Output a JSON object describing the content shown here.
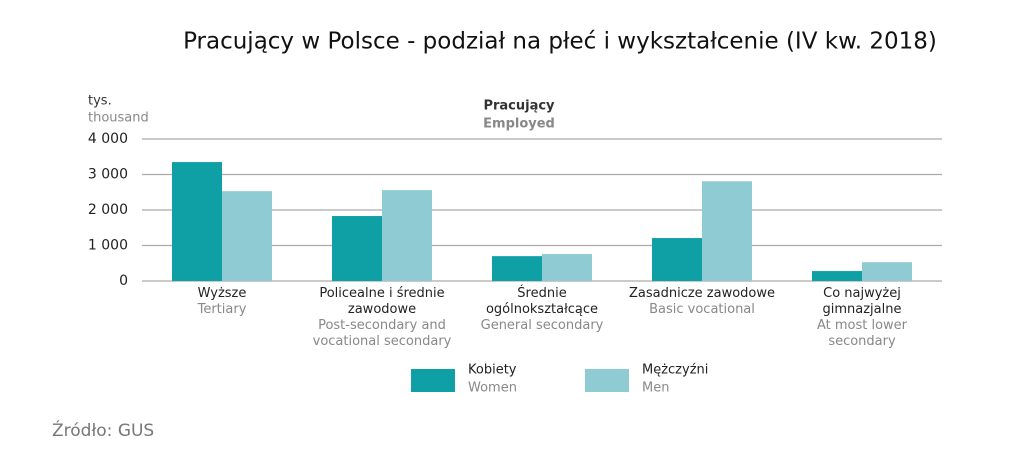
{
  "chart_data": {
    "type": "bar",
    "title": "Pracujący  w Polsce - podział na płeć i wykształcenie (IV kw. 2018)",
    "subtitle": "Pracujący",
    "subtitle_en": "Employed",
    "y_label": "tys.",
    "y_label_en": "thousand",
    "source": "Źródło: GUS",
    "categories": [
      "Wyższe",
      "Policealne i średnie zawodowe",
      "Średnie ogólnokształcące",
      "Zasadnicze zawodowe",
      "Co najwyżej gimnazjalne"
    ],
    "categories_en": [
      "Tertiary",
      "Post-secondary and vocational  secondary",
      "General secondary",
      "Basic vocational",
      "At most lower secondary"
    ],
    "series": [
      {
        "name": "Kobiety",
        "name_en": "Women",
        "color": "#0ea0a5",
        "values": [
          3350,
          1830,
          700,
          1210,
          280
        ]
      },
      {
        "name": "Mężczyźni",
        "name_en": "Men",
        "color": "#8ecbd2",
        "values": [
          2530,
          2560,
          760,
          2810,
          530
        ]
      }
    ],
    "ylim": [
      0,
      4000
    ],
    "yticks": [
      {
        "value": 0,
        "label": "0"
      },
      {
        "value": 1000,
        "label": "1 000"
      },
      {
        "value": 2000,
        "label": "2 000"
      },
      {
        "value": 3000,
        "label": "3 000"
      },
      {
        "value": 4000,
        "label": "4 000"
      }
    ],
    "grid": true
  }
}
